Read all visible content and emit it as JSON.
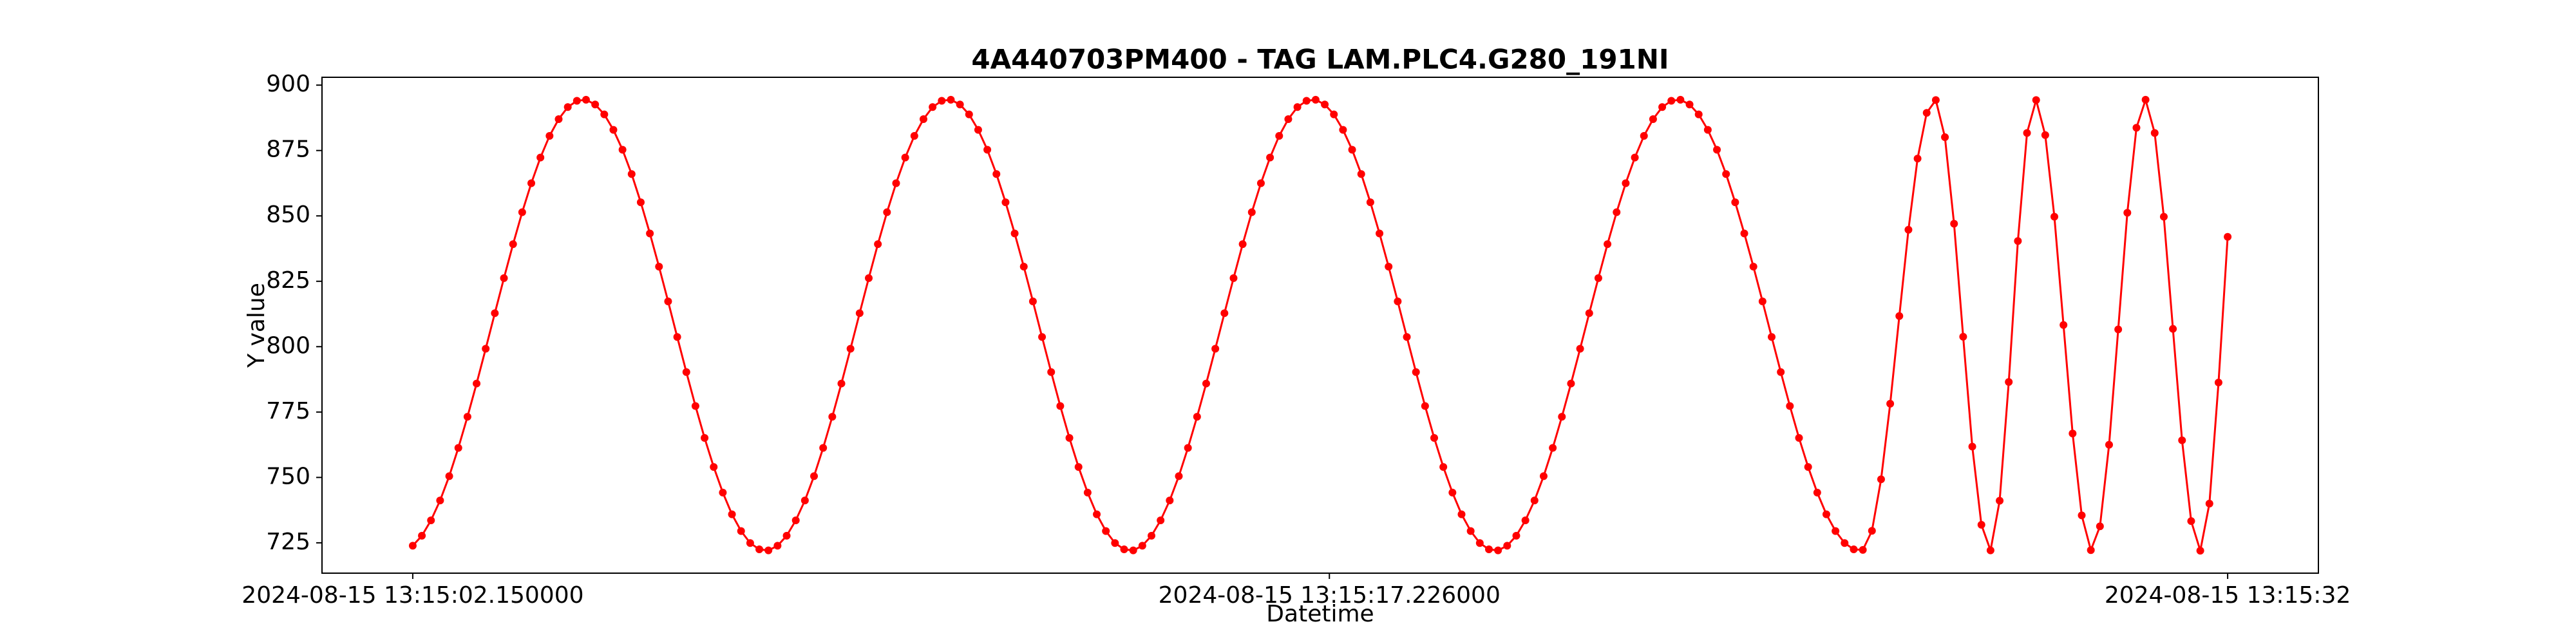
{
  "chart_data": {
    "type": "line",
    "title": "4A440703PM400 - TAG LAM.PLC4.G280_191NI",
    "x_label": "Datetime",
    "y_label": "Y value",
    "color": "#ff0000",
    "grid": false,
    "marker": "o",
    "x": [
      "2024-08-15 13:15:02.150000",
      "2024-08-15 13:15:02.300000",
      "2024-08-15 13:15:02.450000",
      "2024-08-15 13:15:02.600000",
      "2024-08-15 13:15:02.750000",
      "2024-08-15 13:15:02.900000",
      "2024-08-15 13:15:03.050000",
      "2024-08-15 13:15:03.200000",
      "2024-08-15 13:15:03.350000",
      "2024-08-15 13:15:03.500000",
      "2024-08-15 13:15:03.650000",
      "2024-08-15 13:15:03.800000",
      "2024-08-15 13:15:03.950000",
      "2024-08-15 13:15:04.100000",
      "2024-08-15 13:15:04.250000",
      "2024-08-15 13:15:04.400000",
      "2024-08-15 13:15:04.550000",
      "2024-08-15 13:15:04.700000",
      "2024-08-15 13:15:04.850000",
      "2024-08-15 13:15:05.000000",
      "2024-08-15 13:15:05.150000",
      "2024-08-15 13:15:05.300000",
      "2024-08-15 13:15:05.450000",
      "2024-08-15 13:15:05.600000",
      "2024-08-15 13:15:05.750000",
      "2024-08-15 13:15:05.900000",
      "2024-08-15 13:15:06.050000",
      "2024-08-15 13:15:06.200000",
      "2024-08-15 13:15:06.350000",
      "2024-08-15 13:15:06.500000",
      "2024-08-15 13:15:06.650000",
      "2024-08-15 13:15:06.800000",
      "2024-08-15 13:15:06.950000",
      "2024-08-15 13:15:07.100000",
      "2024-08-15 13:15:07.250000",
      "2024-08-15 13:15:07.400000",
      "2024-08-15 13:15:07.550000",
      "2024-08-15 13:15:07.700000",
      "2024-08-15 13:15:07.850000",
      "2024-08-15 13:15:08.000000",
      "2024-08-15 13:15:08.150000",
      "2024-08-15 13:15:08.300000",
      "2024-08-15 13:15:08.450000",
      "2024-08-15 13:15:08.600000",
      "2024-08-15 13:15:08.750000",
      "2024-08-15 13:15:08.900000",
      "2024-08-15 13:15:09.050000",
      "2024-08-15 13:15:09.200000",
      "2024-08-15 13:15:09.350000",
      "2024-08-15 13:15:09.500000",
      "2024-08-15 13:15:09.650000",
      "2024-08-15 13:15:09.800000",
      "2024-08-15 13:15:09.950000",
      "2024-08-15 13:15:10.100000",
      "2024-08-15 13:15:10.250000",
      "2024-08-15 13:15:10.400000",
      "2024-08-15 13:15:10.550000",
      "2024-08-15 13:15:10.700000",
      "2024-08-15 13:15:10.850000",
      "2024-08-15 13:15:11.000000",
      "2024-08-15 13:15:11.150000",
      "2024-08-15 13:15:11.300000",
      "2024-08-15 13:15:11.450000",
      "2024-08-15 13:15:11.600000",
      "2024-08-15 13:15:11.750000",
      "2024-08-15 13:15:11.900000",
      "2024-08-15 13:15:12.050000",
      "2024-08-15 13:15:12.200000",
      "2024-08-15 13:15:12.350000",
      "2024-08-15 13:15:12.500000",
      "2024-08-15 13:15:12.650000",
      "2024-08-15 13:15:12.800000",
      "2024-08-15 13:15:12.950000",
      "2024-08-15 13:15:13.100000",
      "2024-08-15 13:15:13.250000",
      "2024-08-15 13:15:13.400000",
      "2024-08-15 13:15:13.550000",
      "2024-08-15 13:15:13.700000",
      "2024-08-15 13:15:13.850000",
      "2024-08-15 13:15:14.000000",
      "2024-08-15 13:15:14.150000",
      "2024-08-15 13:15:14.300000",
      "2024-08-15 13:15:14.450000",
      "2024-08-15 13:15:14.600000",
      "2024-08-15 13:15:14.750000",
      "2024-08-15 13:15:14.900000",
      "2024-08-15 13:15:15.050000",
      "2024-08-15 13:15:15.200000",
      "2024-08-15 13:15:15.350000",
      "2024-08-15 13:15:15.500000",
      "2024-08-15 13:15:15.650000",
      "2024-08-15 13:15:15.800000",
      "2024-08-15 13:15:15.950000",
      "2024-08-15 13:15:16.100000",
      "2024-08-15 13:15:16.250000",
      "2024-08-15 13:15:16.400000",
      "2024-08-15 13:15:16.550000",
      "2024-08-15 13:15:16.700000",
      "2024-08-15 13:15:16.850000",
      "2024-08-15 13:15:17.000000",
      "2024-08-15 13:15:17.150000",
      "2024-08-15 13:15:17.300000",
      "2024-08-15 13:15:17.450000",
      "2024-08-15 13:15:17.600000",
      "2024-08-15 13:15:17.750000",
      "2024-08-15 13:15:17.900000",
      "2024-08-15 13:15:18.050000",
      "2024-08-15 13:15:18.200000",
      "2024-08-15 13:15:18.350000",
      "2024-08-15 13:15:18.500000",
      "2024-08-15 13:15:18.650000",
      "2024-08-15 13:15:18.800000",
      "2024-08-15 13:15:18.950000",
      "2024-08-15 13:15:19.100000",
      "2024-08-15 13:15:19.250000",
      "2024-08-15 13:15:19.400000",
      "2024-08-15 13:15:19.550000",
      "2024-08-15 13:15:19.700000",
      "2024-08-15 13:15:19.850000",
      "2024-08-15 13:15:20.000000",
      "2024-08-15 13:15:20.150000",
      "2024-08-15 13:15:20.300000",
      "2024-08-15 13:15:20.450000",
      "2024-08-15 13:15:20.600000",
      "2024-08-15 13:15:20.750000",
      "2024-08-15 13:15:20.900000",
      "2024-08-15 13:15:21.050000",
      "2024-08-15 13:15:21.200000",
      "2024-08-15 13:15:21.350000",
      "2024-08-15 13:15:21.500000",
      "2024-08-15 13:15:21.650000",
      "2024-08-15 13:15:21.800000",
      "2024-08-15 13:15:21.950000",
      "2024-08-15 13:15:22.100000",
      "2024-08-15 13:15:22.250000",
      "2024-08-15 13:15:22.400000",
      "2024-08-15 13:15:22.550000",
      "2024-08-15 13:15:22.700000",
      "2024-08-15 13:15:22.850000",
      "2024-08-15 13:15:23.000000",
      "2024-08-15 13:15:23.150000",
      "2024-08-15 13:15:23.300000",
      "2024-08-15 13:15:23.450000",
      "2024-08-15 13:15:23.600000",
      "2024-08-15 13:15:23.750000",
      "2024-08-15 13:15:23.900000",
      "2024-08-15 13:15:24.050000",
      "2024-08-15 13:15:24.200000",
      "2024-08-15 13:15:24.350000",
      "2024-08-15 13:15:24.500000",
      "2024-08-15 13:15:24.650000",
      "2024-08-15 13:15:24.800000",
      "2024-08-15 13:15:24.950000",
      "2024-08-15 13:15:25.100000",
      "2024-08-15 13:15:25.250000",
      "2024-08-15 13:15:25.400000",
      "2024-08-15 13:15:25.550000",
      "2024-08-15 13:15:25.700000",
      "2024-08-15 13:15:25.850000",
      "2024-08-15 13:15:26.000000",
      "2024-08-15 13:15:26.150000",
      "2024-08-15 13:15:26.300000",
      "2024-08-15 13:15:26.450000",
      "2024-08-15 13:15:26.600000",
      "2024-08-15 13:15:26.750000",
      "2024-08-15 13:15:26.900000",
      "2024-08-15 13:15:27.050000",
      "2024-08-15 13:15:27.200000",
      "2024-08-15 13:15:27.350000",
      "2024-08-15 13:15:27.500000",
      "2024-08-15 13:15:27.650000",
      "2024-08-15 13:15:27.800000",
      "2024-08-15 13:15:27.950000",
      "2024-08-15 13:15:28.100000",
      "2024-08-15 13:15:28.250000",
      "2024-08-15 13:15:28.400000",
      "2024-08-15 13:15:28.550000",
      "2024-08-15 13:15:28.700000",
      "2024-08-15 13:15:28.850000",
      "2024-08-15 13:15:29.000000",
      "2024-08-15 13:15:29.150000",
      "2024-08-15 13:15:29.300000",
      "2024-08-15 13:15:29.450000",
      "2024-08-15 13:15:29.600000",
      "2024-08-15 13:15:29.750000",
      "2024-08-15 13:15:29.900000",
      "2024-08-15 13:15:30.050000",
      "2024-08-15 13:15:30.200000",
      "2024-08-15 13:15:30.350000",
      "2024-08-15 13:15:30.500000",
      "2024-08-15 13:15:30.650000",
      "2024-08-15 13:15:30.800000",
      "2024-08-15 13:15:30.950000",
      "2024-08-15 13:15:31.100000",
      "2024-08-15 13:15:31.250000",
      "2024-08-15 13:15:31.400000",
      "2024-08-15 13:15:31.550000",
      "2024-08-15 13:15:31.700000",
      "2024-08-15 13:15:31.850000",
      "2024-08-15 13:15:32.000000"
    ],
    "values": [
      723.9,
      727.7,
      733.6,
      741.2,
      750.5,
      761.3,
      773.2,
      785.9,
      799.2,
      812.8,
      826.2,
      839.2,
      851.4,
      862.5,
      872.3,
      880.6,
      887.0,
      891.6,
      894.0,
      894.4,
      892.6,
      888.8,
      882.9,
      875.3,
      866.0,
      855.2,
      843.3,
      830.6,
      817.3,
      803.7,
      790.3,
      777.3,
      765.1,
      754.0,
      744.2,
      735.9,
      729.5,
      724.9,
      722.5,
      722.1,
      723.9,
      727.7,
      733.6,
      741.2,
      750.5,
      761.3,
      773.2,
      785.9,
      799.2,
      812.8,
      826.2,
      839.2,
      851.4,
      862.5,
      872.3,
      880.6,
      887.0,
      891.6,
      894.0,
      894.4,
      892.6,
      888.8,
      882.9,
      875.3,
      866.0,
      855.2,
      843.3,
      830.6,
      817.3,
      803.7,
      790.3,
      777.3,
      765.1,
      754.0,
      744.2,
      735.9,
      729.5,
      724.9,
      722.5,
      722.1,
      723.9,
      727.7,
      733.6,
      741.2,
      750.5,
      761.3,
      773.2,
      785.9,
      799.2,
      812.8,
      826.2,
      839.2,
      851.4,
      862.5,
      872.3,
      880.6,
      887.0,
      891.6,
      894.0,
      894.4,
      892.6,
      888.8,
      882.9,
      875.3,
      866.0,
      855.2,
      843.3,
      830.6,
      817.3,
      803.7,
      790.3,
      777.3,
      765.1,
      754.0,
      744.2,
      735.9,
      729.5,
      724.9,
      722.5,
      722.1,
      723.9,
      727.7,
      733.6,
      741.2,
      750.5,
      761.3,
      773.2,
      785.9,
      799.2,
      812.8,
      826.2,
      839.2,
      851.4,
      862.5,
      872.3,
      880.6,
      887.0,
      891.6,
      894.0,
      894.4,
      892.6,
      888.8,
      882.9,
      875.3,
      866.0,
      855.2,
      843.3,
      830.6,
      817.3,
      803.7,
      790.3,
      777.3,
      765.1,
      754.0,
      744.2,
      735.9,
      729.5,
      724.9,
      722.5,
      722.3,
      729.6,
      749.3,
      778.2,
      811.7,
      844.7,
      871.9,
      889.4,
      894.3,
      880.1,
      847.0,
      803.8,
      761.8,
      731.9,
      722.1,
      741.1,
      786.5,
      840.4,
      881.7,
      894.3,
      880.9,
      849.7,
      808.3,
      766.8,
      735.5,
      722.2,
      731.3,
      762.5,
      806.6,
      851.2,
      883.7,
      894.4,
      881.7,
      849.7,
      806.8,
      764.2,
      733.3,
      722.0,
      740.0,
      786.3,
      842.0
    ],
    "xlim": [
      "2024-08-15 13:15:00.657500",
      "2024-08-15 13:15:33.492500"
    ],
    "xticks": [
      "2024-08-15 13:15:02.150000",
      "2024-08-15 13:15:17.226000",
      "2024-08-15 13:15:32"
    ],
    "ylim": [
      713.4,
      903.0
    ],
    "yticks": [
      725,
      750,
      775,
      800,
      825,
      850,
      875,
      900
    ]
  }
}
